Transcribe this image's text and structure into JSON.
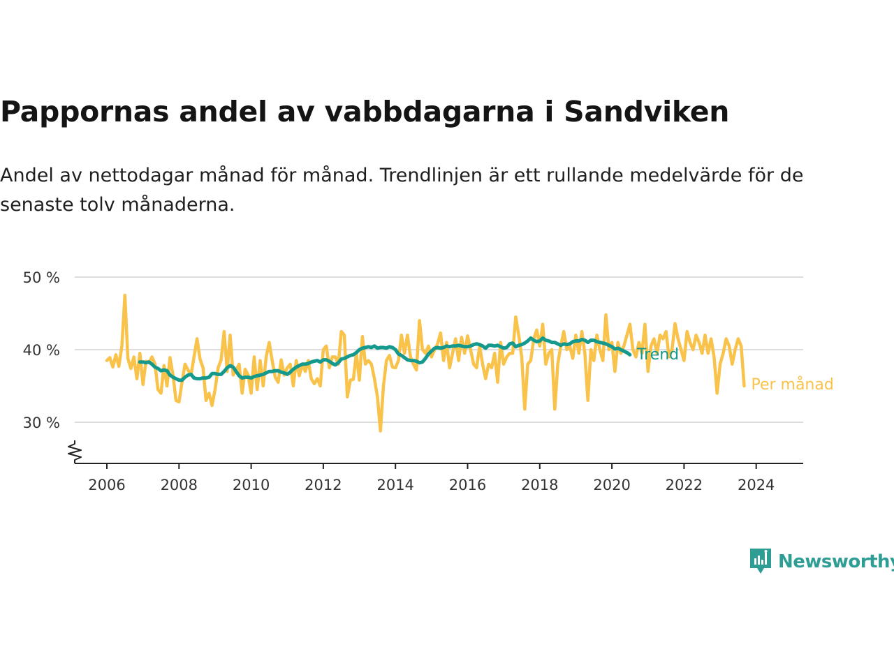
{
  "title": "Pappornas andel av vabbdagarna i Sandviken",
  "subtitle": "Andel av nettodagar månad för månad. Trendlinjen är ett rullande medelvärde för de senaste tolv månaderna.",
  "brand": {
    "name": "Newsworthy",
    "color": "#2e9e94"
  },
  "colors": {
    "monthly": "#f9c24a",
    "trend": "#14998c",
    "grid": "#dddddd",
    "axis": "#222222"
  },
  "chart_data": {
    "type": "line",
    "x_start": "2006-01",
    "x_step": "month",
    "xlim": [
      2005.0,
      2025.2
    ],
    "ylim": [
      24,
      52
    ],
    "y_axis_broken": true,
    "y_ticks": [
      30,
      40,
      50
    ],
    "y_tick_labels": [
      "30 %",
      "40 %",
      "50 %"
    ],
    "x_ticks": [
      2006,
      2008,
      2010,
      2012,
      2014,
      2016,
      2018,
      2020,
      2022,
      2024
    ],
    "x_tick_labels": [
      "2006",
      "2008",
      "2010",
      "2012",
      "2014",
      "2016",
      "2018",
      "2020",
      "2022",
      "2024"
    ],
    "grid": "horizontal",
    "series": [
      {
        "name": "Trend",
        "x_start": "2006-12",
        "values": [
          38.3,
          38.3,
          38.2,
          38.3,
          38.0,
          37.6,
          37.4,
          37.1,
          37.2,
          37.1,
          36.5,
          36.2,
          36.0,
          35.8,
          35.8,
          36.2,
          36.5,
          36.6,
          36.1,
          36.0,
          36.0,
          36.1,
          36.1,
          36.2,
          36.7,
          36.7,
          36.6,
          36.6,
          37.0,
          37.5,
          37.8,
          37.6,
          37.0,
          36.4,
          36.1,
          36.2,
          36.2,
          36.1,
          36.3,
          36.4,
          36.5,
          36.6,
          36.8,
          37.0,
          37.0,
          37.1,
          37.1,
          36.9,
          36.8,
          36.6,
          36.9,
          37.3,
          37.6,
          37.8,
          38.0,
          38.0,
          38.1,
          38.3,
          38.4,
          38.5,
          38.3,
          38.6,
          38.6,
          38.4,
          38.1,
          37.9,
          38.2,
          38.7,
          38.8,
          39.0,
          39.2,
          39.3,
          39.6,
          40.0,
          40.2,
          40.3,
          40.4,
          40.3,
          40.5,
          40.2,
          40.3,
          40.3,
          40.2,
          40.4,
          40.3,
          40.0,
          39.4,
          39.2,
          38.9,
          38.6,
          38.5,
          38.5,
          38.4,
          38.2,
          38.3,
          38.8,
          39.4,
          39.8,
          40.2,
          40.3,
          40.2,
          40.3,
          40.5,
          40.4,
          40.5,
          40.5,
          40.6,
          40.5,
          40.4,
          40.4,
          40.5,
          40.7,
          40.8,
          40.7,
          40.5,
          40.2,
          40.6,
          40.6,
          40.5,
          40.6,
          40.4,
          40.2,
          40.3,
          40.8,
          40.9,
          40.4,
          40.6,
          40.7,
          40.9,
          41.2,
          41.6,
          41.3,
          41.1,
          41.2,
          41.6,
          41.3,
          41.2,
          41.0,
          41.0,
          40.8,
          40.6,
          40.8,
          40.7,
          40.8,
          41.1,
          41.2,
          41.2,
          41.4,
          41.3,
          41.0,
          41.3,
          41.3,
          41.1,
          41.0,
          40.9,
          40.8,
          40.6,
          40.4,
          40.1,
          40.2,
          40.0,
          39.8,
          39.6,
          39.3
        ]
      },
      {
        "name": "Per månad",
        "x_start": "2006-01",
        "values": [
          38.5,
          38.9,
          37.6,
          39.3,
          37.7,
          40.5,
          47.5,
          38.8,
          37.4,
          39.0,
          36.0,
          39.5,
          35.2,
          38.4,
          38.2,
          39.0,
          38.0,
          34.5,
          34.0,
          37.8,
          35.0,
          38.9,
          36.5,
          33.0,
          32.8,
          35.5,
          38.0,
          37.2,
          36.5,
          39.0,
          41.5,
          38.7,
          37.5,
          33.0,
          34.0,
          32.3,
          34.5,
          37.5,
          38.6,
          42.5,
          37.0,
          42.0,
          36.5,
          37.2,
          38.0,
          34.0,
          37.3,
          36.5,
          34.0,
          39.0,
          34.5,
          38.5,
          35.0,
          39.0,
          41.0,
          38.5,
          36.2,
          35.5,
          38.6,
          36.5,
          37.5,
          38.0,
          35.0,
          38.5,
          36.4,
          38.0,
          37.0,
          38.5,
          36.0,
          35.3,
          36.0,
          35.0,
          40.0,
          40.5,
          37.5,
          39.0,
          39.0,
          38.0,
          42.5,
          42.0,
          33.5,
          35.8,
          35.9,
          39.5,
          35.8,
          41.8,
          38.0,
          38.5,
          38.0,
          36.0,
          33.5,
          28.8,
          35.0,
          38.5,
          39.2,
          37.6,
          37.5,
          38.5,
          42.0,
          39.5,
          42.0,
          39.0,
          38.0,
          37.2,
          44.0,
          40.0,
          39.5,
          40.5,
          39.0,
          40.0,
          40.8,
          42.3,
          38.5,
          41.0,
          37.5,
          39.5,
          41.5,
          38.5,
          41.7,
          39.5,
          41.9,
          40.0,
          38.0,
          37.5,
          40.5,
          38.0,
          36.0,
          38.0,
          37.5,
          39.5,
          35.5,
          41.0,
          38.0,
          39.0,
          39.5,
          39.5,
          44.5,
          42.0,
          39.0,
          31.8,
          38.0,
          38.5,
          41.5,
          42.7,
          40.5,
          43.5,
          38.0,
          39.5,
          40.0,
          31.8,
          38.0,
          40.5,
          42.5,
          40.0,
          40.5,
          38.8,
          42.0,
          39.5,
          42.5,
          39.5,
          33.0,
          40.0,
          38.5,
          42.0,
          40.0,
          38.5,
          44.8,
          40.0,
          41.0,
          37.0,
          41.0,
          39.5,
          40.5,
          42.0,
          43.5,
          40.0,
          39.0,
          41.0,
          39.5,
          43.5,
          37.0,
          40.5,
          41.5,
          39.5,
          42.0,
          41.5,
          42.5,
          39.0,
          40.0,
          43.6,
          41.5,
          40.0,
          38.5,
          42.5,
          41.0,
          40.0,
          42.0,
          41.0,
          39.5,
          42.0,
          39.5,
          41.5,
          39.0,
          34.0,
          38.0,
          39.5,
          41.5,
          40.5,
          38.0,
          40.0,
          41.5,
          40.5,
          35.0
        ]
      }
    ]
  }
}
